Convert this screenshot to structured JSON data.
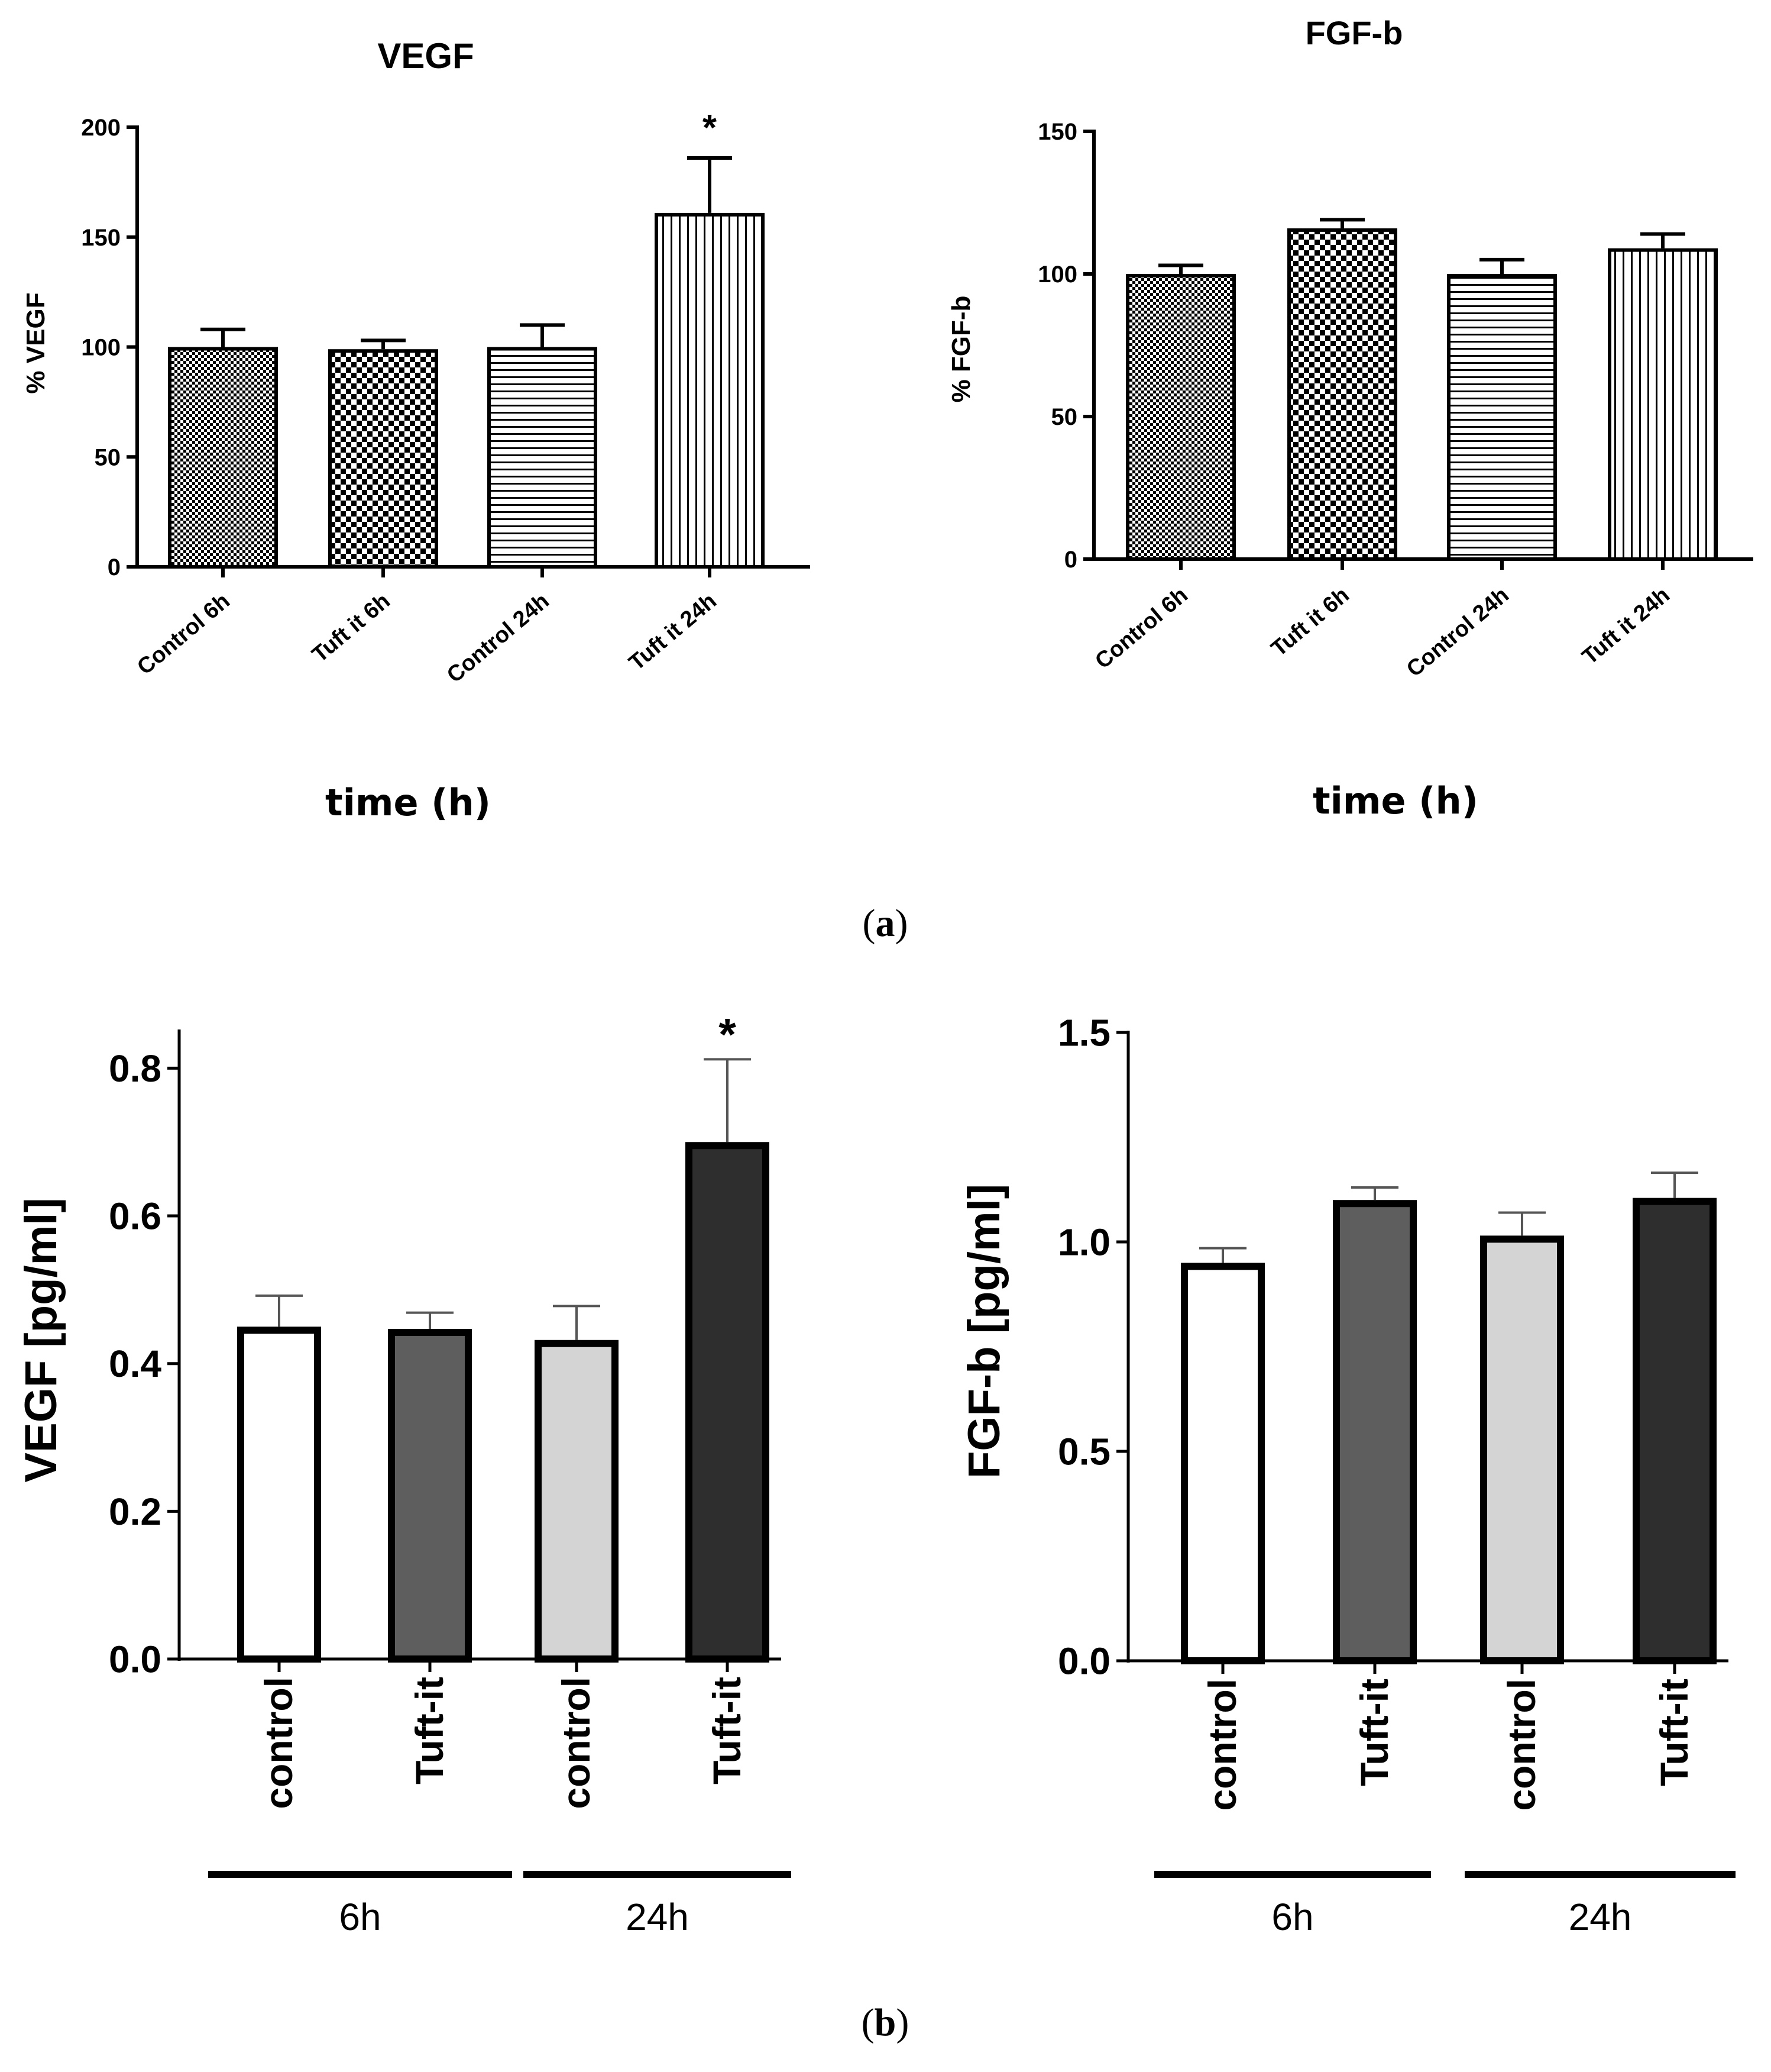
{
  "panel_labels": {
    "a": "a",
    "b": "b"
  },
  "colors": {
    "axis": "#000000",
    "white": "#ffffff",
    "dark_gray": "#5e5e5e",
    "light_gray": "#d4d4d4",
    "black_bar": "#2e2e2e",
    "error_gray": "#555555"
  },
  "chart_data": [
    {
      "id": "a-vegf",
      "type": "bar",
      "title": "VEGF",
      "ylabel": "% VEGF",
      "xlabel": "time (h)",
      "categories": [
        "Control 6h",
        "Tuft it 6h",
        "Control 24h",
        "Tuft it 24h"
      ],
      "values": [
        100,
        99,
        100,
        161
      ],
      "errors": [
        8,
        4,
        10,
        25
      ],
      "patterns": [
        "fine-checker",
        "checker",
        "horizontal",
        "vertical"
      ],
      "ylim": [
        0,
        200
      ],
      "yticks": [
        0,
        50,
        100,
        150,
        200
      ],
      "ytick_labels": [
        "0",
        "50",
        "100",
        "150",
        "200"
      ],
      "annotations": [
        {
          "bar": 3,
          "text": "*"
        }
      ]
    },
    {
      "id": "a-fgfb",
      "type": "bar",
      "title": "FGF-b",
      "ylabel": "% FGF-b",
      "xlabel": "time (h)",
      "categories": [
        "Control 6h",
        "Tuft it 6h",
        "Control 24h",
        "Tuft it 24h"
      ],
      "values": [
        100,
        116,
        100,
        109
      ],
      "errors": [
        3,
        3,
        5,
        5
      ],
      "patterns": [
        "fine-checker",
        "checker",
        "horizontal",
        "vertical"
      ],
      "ylim": [
        0,
        150
      ],
      "yticks": [
        0,
        50,
        100,
        150
      ],
      "ytick_labels": [
        "0",
        "50",
        "100",
        "150"
      ],
      "annotations": []
    },
    {
      "id": "b-vegf",
      "type": "bar",
      "title": "",
      "ylabel": "VEGF [pg/ml]",
      "categories": [
        "control",
        "Tuft-it",
        "control",
        "Tuft-it"
      ],
      "groups": [
        "6h",
        "24h"
      ],
      "values": [
        0.45,
        0.447,
        0.432,
        0.7
      ],
      "errors": [
        0.042,
        0.022,
        0.046,
        0.112
      ],
      "fills": [
        "white",
        "dark_gray",
        "light_gray",
        "black_bar"
      ],
      "ylim": [
        0,
        0.85
      ],
      "yticks": [
        0,
        0.2,
        0.4,
        0.6,
        0.8
      ],
      "ytick_labels": [
        "0.0",
        "0.2",
        "0.4",
        "0.6",
        "0.8"
      ],
      "annotations": [
        {
          "bar": 3,
          "text": "*"
        }
      ]
    },
    {
      "id": "b-fgfb",
      "type": "bar",
      "title": "",
      "ylabel": "FGF-b [pg/ml]",
      "categories": [
        "control",
        "Tuft-it",
        "control",
        "Tuft-it"
      ],
      "groups": [
        "6h",
        "24h"
      ],
      "values": [
        0.95,
        1.1,
        1.015,
        1.105
      ],
      "errors": [
        0.035,
        0.03,
        0.055,
        0.06
      ],
      "fills": [
        "white",
        "dark_gray",
        "light_gray",
        "black_bar"
      ],
      "ylim": [
        0,
        1.5
      ],
      "yticks": [
        0,
        0.5,
        1.0,
        1.5
      ],
      "ytick_labels": [
        "0.0",
        "0.5",
        "1.0",
        "1.5"
      ],
      "annotations": []
    }
  ]
}
